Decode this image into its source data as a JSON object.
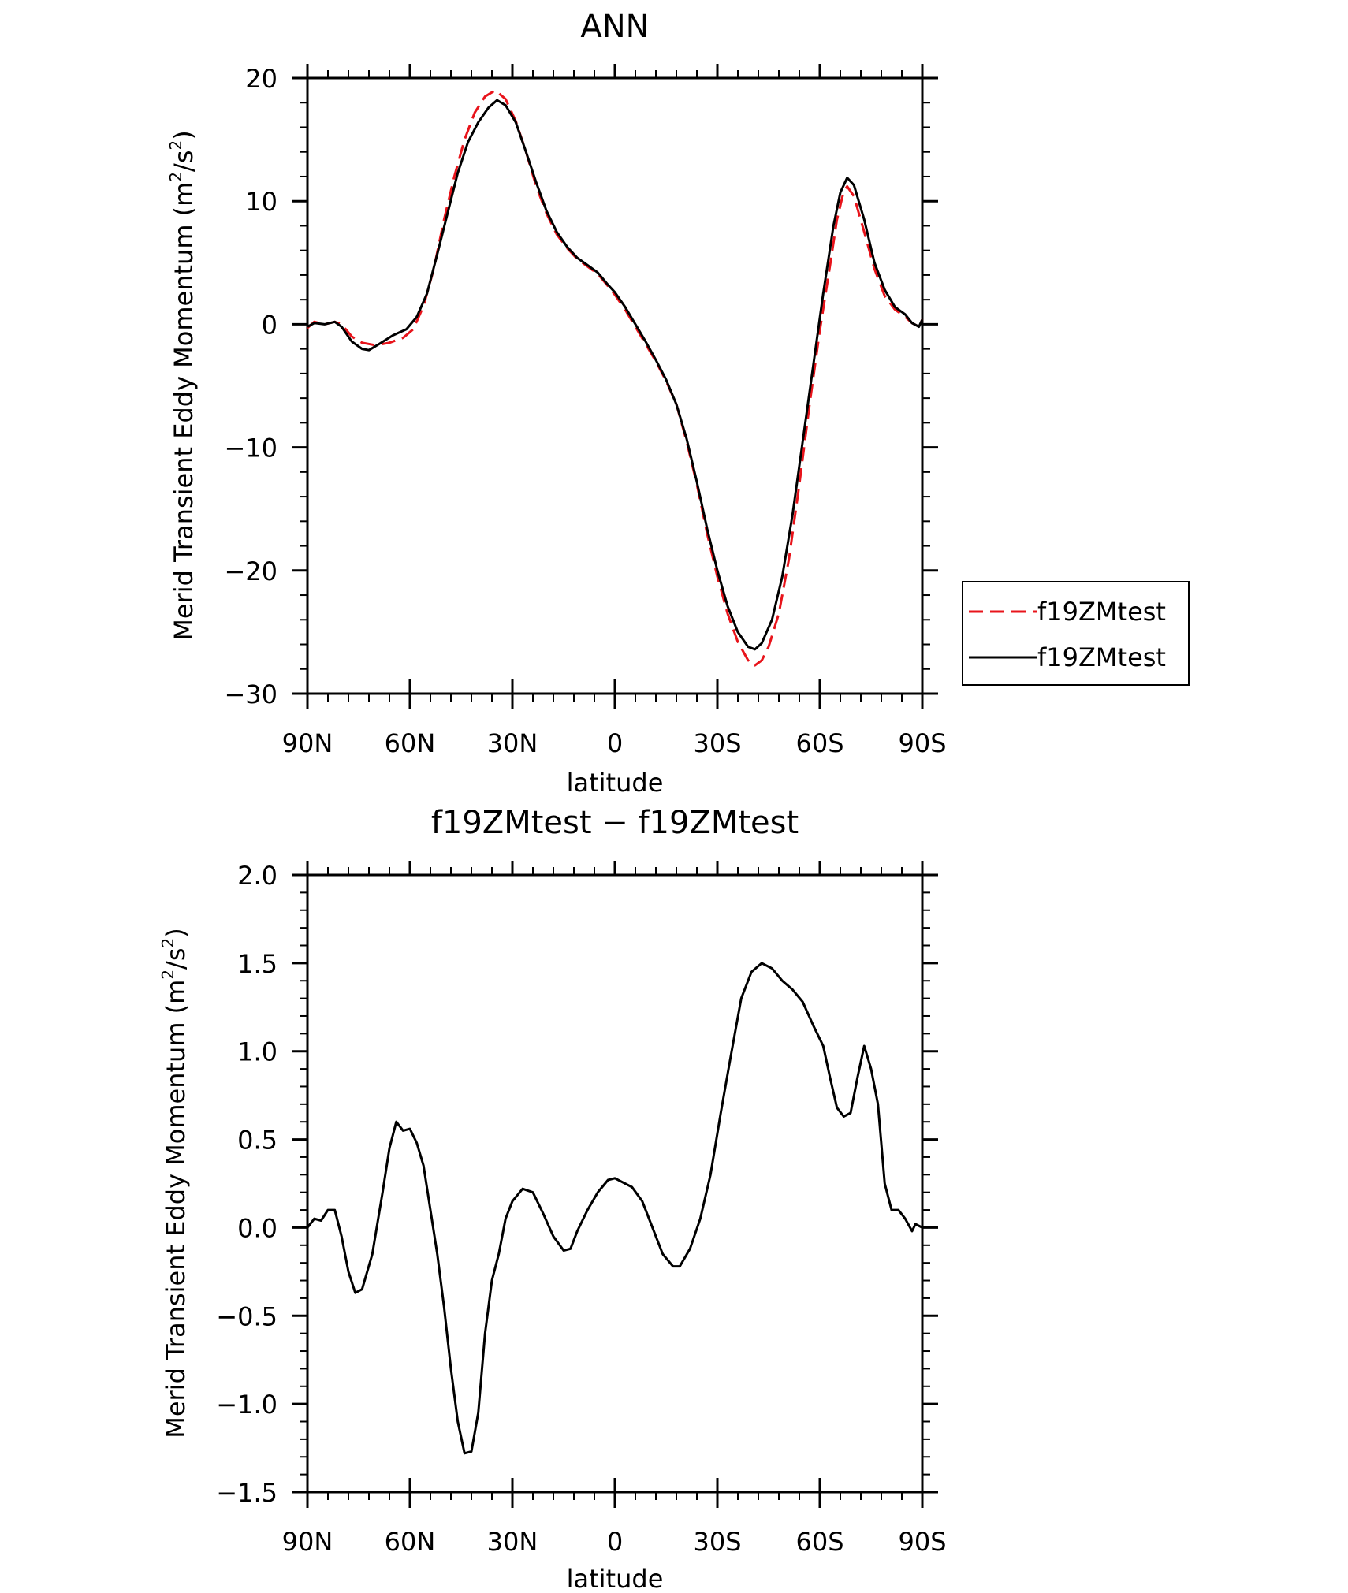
{
  "chart_data": [
    {
      "type": "line",
      "title": "ANN",
      "xlabel": "latitude",
      "ylabel_main": "Merid Transient Eddy Momentum",
      "ylabel_unit_prefix": "(m",
      "ylabel_unit_sup": "2",
      "ylabel_unit_mid": "/s",
      "ylabel_unit_sup2": "2",
      "ylabel_unit_suffix": ")",
      "xlim": [
        90,
        -90
      ],
      "ylim": [
        -30,
        20
      ],
      "x_ticks": [
        90,
        60,
        30,
        0,
        -30,
        -60,
        -90
      ],
      "x_tick_labels": [
        "90N",
        "60N",
        "30N",
        "0",
        "30S",
        "60S",
        "90S"
      ],
      "y_ticks": [
        20,
        10,
        0,
        -10,
        -20,
        -30
      ],
      "y_tick_labels": [
        "20",
        "10",
        "0",
        "−10",
        "−20",
        "−30"
      ],
      "legend": {
        "placement": "right-outside",
        "entries": [
          "f19ZMtest",
          "f19ZMtest"
        ]
      },
      "series": [
        {
          "name": "f19ZMtest",
          "color": "#e8141b",
          "style": "dashed",
          "points": [
            [
              90,
              -0.3
            ],
            [
              88,
              0.2
            ],
            [
              85,
              0
            ],
            [
              82,
              0.2
            ],
            [
              80,
              0
            ],
            [
              77,
              -1
            ],
            [
              74,
              -1.5
            ],
            [
              70,
              -1.7
            ],
            [
              66,
              -1.5
            ],
            [
              62,
              -1.1
            ],
            [
              59,
              -0.4
            ],
            [
              56,
              1.5
            ],
            [
              53,
              4.5
            ],
            [
              50,
              8.5
            ],
            [
              47,
              12
            ],
            [
              44,
              15
            ],
            [
              41,
              17.2
            ],
            [
              38,
              18.5
            ],
            [
              35,
              19
            ],
            [
              32,
              18.3
            ],
            [
              29,
              16.5
            ],
            [
              26,
              14
            ],
            [
              23,
              11.2
            ],
            [
              20,
              9
            ],
            [
              17,
              7.3
            ],
            [
              14,
              6.2
            ],
            [
              11,
              5.3
            ],
            [
              8,
              4.7
            ],
            [
              5,
              4.1
            ],
            [
              2,
              3.1
            ],
            [
              0,
              2.4
            ],
            [
              -3,
              1.2
            ],
            [
              -6,
              -0.2
            ],
            [
              -9,
              -1.6
            ],
            [
              -12,
              -3
            ],
            [
              -15,
              -4.6
            ],
            [
              -18,
              -6.5
            ],
            [
              -21,
              -9.5
            ],
            [
              -24,
              -13
            ],
            [
              -27,
              -17
            ],
            [
              -30,
              -20.5
            ],
            [
              -33,
              -23.5
            ],
            [
              -36,
              -25.8
            ],
            [
              -39,
              -27.3
            ],
            [
              -41,
              -27.7
            ],
            [
              -43,
              -27.3
            ],
            [
              -45,
              -26.2
            ],
            [
              -48,
              -23.5
            ],
            [
              -51,
              -19
            ],
            [
              -54,
              -13
            ],
            [
              -57,
              -6.5
            ],
            [
              -60,
              -0.5
            ],
            [
              -63,
              4.8
            ],
            [
              -65,
              8.5
            ],
            [
              -67,
              10.8
            ],
            [
              -68,
              11.2
            ],
            [
              -70,
              10.4
            ],
            [
              -73,
              7.5
            ],
            [
              -76,
              4.5
            ],
            [
              -79,
              2.3
            ],
            [
              -82,
              1.2
            ],
            [
              -85,
              0.6
            ],
            [
              -87,
              0.1
            ],
            [
              -89,
              -0.2
            ],
            [
              -90,
              0.4
            ]
          ]
        },
        {
          "name": "f19ZMtest",
          "color": "#000000",
          "style": "solid",
          "points": [
            [
              90,
              -0.2
            ],
            [
              88,
              0.1
            ],
            [
              85,
              0
            ],
            [
              82,
              0.2
            ],
            [
              80,
              -0.2
            ],
            [
              77,
              -1.4
            ],
            [
              74,
              -2
            ],
            [
              72,
              -2.1
            ],
            [
              69,
              -1.6
            ],
            [
              65,
              -0.9
            ],
            [
              61,
              -0.4
            ],
            [
              58,
              0.6
            ],
            [
              55,
              2.5
            ],
            [
              52,
              5.7
            ],
            [
              49,
              9
            ],
            [
              46,
              12.3
            ],
            [
              43,
              14.8
            ],
            [
              40,
              16.4
            ],
            [
              37,
              17.6
            ],
            [
              34.5,
              18.2
            ],
            [
              32,
              17.8
            ],
            [
              29,
              16.4
            ],
            [
              26,
              14
            ],
            [
              23,
              11.5
            ],
            [
              20,
              9.2
            ],
            [
              17,
              7.5
            ],
            [
              14,
              6.3
            ],
            [
              11,
              5.4
            ],
            [
              8,
              4.8
            ],
            [
              5,
              4.2
            ],
            [
              2,
              3.2
            ],
            [
              0,
              2.6
            ],
            [
              -3,
              1.4
            ],
            [
              -6,
              0
            ],
            [
              -9,
              -1.4
            ],
            [
              -12,
              -2.9
            ],
            [
              -15,
              -4.5
            ],
            [
              -18,
              -6.5
            ],
            [
              -21,
              -9.3
            ],
            [
              -24,
              -12.8
            ],
            [
              -27,
              -16.6
            ],
            [
              -30,
              -20
            ],
            [
              -33,
              -22.9
            ],
            [
              -36,
              -25
            ],
            [
              -39,
              -26.2
            ],
            [
              -41,
              -26.4
            ],
            [
              -43,
              -25.9
            ],
            [
              -46,
              -24
            ],
            [
              -49,
              -20.5
            ],
            [
              -52,
              -15.5
            ],
            [
              -55,
              -9.5
            ],
            [
              -58,
              -3.5
            ],
            [
              -61,
              2.5
            ],
            [
              -64,
              8
            ],
            [
              -66,
              10.7
            ],
            [
              -68,
              11.9
            ],
            [
              -70,
              11.3
            ],
            [
              -73,
              8.5
            ],
            [
              -76,
              5
            ],
            [
              -79,
              2.8
            ],
            [
              -82,
              1.4
            ],
            [
              -85,
              0.8
            ],
            [
              -87,
              0.1
            ],
            [
              -89,
              -0.2
            ],
            [
              -90,
              0.4
            ]
          ]
        }
      ]
    },
    {
      "type": "line",
      "title": "f19ZMtest − f19ZMtest",
      "xlabel": "latitude",
      "ylabel_main": "Merid Transient Eddy Momentum",
      "ylabel_unit_prefix": "(m",
      "ylabel_unit_sup": "2",
      "ylabel_unit_mid": "/s",
      "ylabel_unit_sup2": "2",
      "ylabel_unit_suffix": ")",
      "xlim": [
        90,
        -90
      ],
      "ylim": [
        -1.5,
        2.0
      ],
      "x_ticks": [
        90,
        60,
        30,
        0,
        -30,
        -60,
        -90
      ],
      "x_tick_labels": [
        "90N",
        "60N",
        "30N",
        "0",
        "30S",
        "60S",
        "90S"
      ],
      "y_ticks": [
        2.0,
        1.5,
        1.0,
        0.5,
        0.0,
        -0.5,
        -1.0,
        -1.5
      ],
      "y_tick_labels": [
        "2.0",
        "1.5",
        "1.0",
        "0.5",
        "0.0",
        "−0.5",
        "−1.0",
        "−1.5"
      ],
      "series": [
        {
          "color": "#000000",
          "style": "solid",
          "points": [
            [
              90,
              0
            ],
            [
              88,
              0.05
            ],
            [
              86,
              0.04
            ],
            [
              84,
              0.1
            ],
            [
              82,
              0.1
            ],
            [
              80,
              -0.05
            ],
            [
              78,
              -0.25
            ],
            [
              76,
              -0.37
            ],
            [
              74,
              -0.35
            ],
            [
              71,
              -0.15
            ],
            [
              68,
              0.2
            ],
            [
              66,
              0.45
            ],
            [
              64,
              0.6
            ],
            [
              62,
              0.55
            ],
            [
              60,
              0.56
            ],
            [
              58,
              0.48
            ],
            [
              56,
              0.35
            ],
            [
              54,
              0.1
            ],
            [
              52,
              -0.15
            ],
            [
              50,
              -0.45
            ],
            [
              48,
              -0.8
            ],
            [
              46,
              -1.1
            ],
            [
              44,
              -1.28
            ],
            [
              42,
              -1.27
            ],
            [
              40,
              -1.05
            ],
            [
              38,
              -0.6
            ],
            [
              36,
              -0.3
            ],
            [
              34,
              -0.15
            ],
            [
              32,
              0.05
            ],
            [
              30,
              0.15
            ],
            [
              27,
              0.22
            ],
            [
              24,
              0.2
            ],
            [
              21,
              0.08
            ],
            [
              18,
              -0.05
            ],
            [
              15,
              -0.13
            ],
            [
              13,
              -0.12
            ],
            [
              11,
              -0.02
            ],
            [
              8,
              0.1
            ],
            [
              5,
              0.2
            ],
            [
              2,
              0.27
            ],
            [
              0,
              0.28
            ],
            [
              -2,
              0.26
            ],
            [
              -5,
              0.23
            ],
            [
              -8,
              0.15
            ],
            [
              -11,
              0
            ],
            [
              -14,
              -0.15
            ],
            [
              -17,
              -0.22
            ],
            [
              -19,
              -0.22
            ],
            [
              -22,
              -0.12
            ],
            [
              -25,
              0.05
            ],
            [
              -28,
              0.3
            ],
            [
              -31,
              0.65
            ],
            [
              -34,
              0.98
            ],
            [
              -37,
              1.3
            ],
            [
              -40,
              1.45
            ],
            [
              -43,
              1.5
            ],
            [
              -46,
              1.47
            ],
            [
              -49,
              1.4
            ],
            [
              -52,
              1.35
            ],
            [
              -55,
              1.28
            ],
            [
              -58,
              1.15
            ],
            [
              -61,
              1.03
            ],
            [
              -63,
              0.85
            ],
            [
              -65,
              0.68
            ],
            [
              -67,
              0.63
            ],
            [
              -69,
              0.65
            ],
            [
              -71,
              0.85
            ],
            [
              -73,
              1.03
            ],
            [
              -75,
              0.9
            ],
            [
              -77,
              0.7
            ],
            [
              -79,
              0.25
            ],
            [
              -81,
              0.1
            ],
            [
              -83,
              0.1
            ],
            [
              -85,
              0.05
            ],
            [
              -87,
              -0.02
            ],
            [
              -88,
              0.02
            ],
            [
              -90,
              0
            ]
          ]
        }
      ]
    }
  ]
}
